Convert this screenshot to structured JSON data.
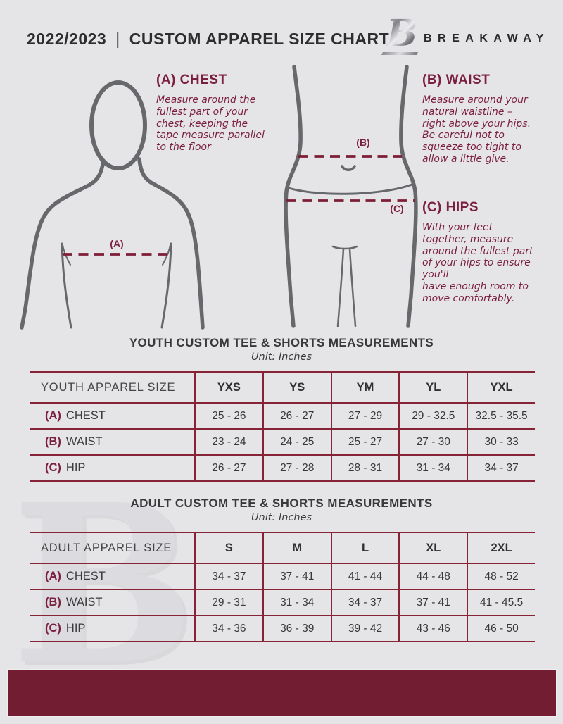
{
  "colors": {
    "background": "#e5e4e6",
    "maroon_text": "#7b1f3e",
    "table_line": "#862336",
    "footer_bar": "#731d32",
    "figure_stroke": "#67686b"
  },
  "header": {
    "year": "2022/2023",
    "divider": "|",
    "title": "CUSTOM APPAREL SIZE CHART",
    "brand": "BREAKAWAY",
    "logo_letter": "B"
  },
  "instructions": {
    "chest": {
      "heading": "(A) CHEST",
      "body": "Measure around the\nfullest part of your\nchest, keeping the\ntape measure parallel\nto the floor",
      "marker": "(A)"
    },
    "waist": {
      "heading": "(B) WAIST",
      "body": "Measure around your\nnatural waistline –\nright above your hips.\nBe careful not to\nsqueeze too tight to\nallow a little give.",
      "marker": "(B)"
    },
    "hips": {
      "heading": "(C) HIPS",
      "body": "With your feet\ntogether, measure\naround the fullest part\nof your hips to ensure\nyou'll\nhave enough room to\nmove comfortably.",
      "marker": "(C)"
    }
  },
  "youth_table": {
    "title": "YOUTH CUSTOM TEE & SHORTS MEASUREMENTS",
    "unit": "Unit: Inches",
    "header": [
      "YOUTH APPAREL SIZE",
      "YXS",
      "YS",
      "YM",
      "YL",
      "YXL"
    ],
    "rows": [
      {
        "prefix": "(A)",
        "label": "CHEST",
        "values": [
          "25 - 26",
          "26 - 27",
          "27 - 29",
          "29 - 32.5",
          "32.5 - 35.5"
        ]
      },
      {
        "prefix": "(B)",
        "label": "WAIST",
        "values": [
          "23 - 24",
          "24 - 25",
          "25 - 27",
          "27 - 30",
          "30 - 33"
        ]
      },
      {
        "prefix": "(C)",
        "label": "HIP",
        "values": [
          "26 - 27",
          "27 - 28",
          "28 - 31",
          "31 - 34",
          "34 - 37"
        ]
      }
    ]
  },
  "adult_table": {
    "title": "ADULT CUSTOM TEE & SHORTS MEASUREMENTS",
    "unit": "Unit: Inches",
    "header": [
      "ADULT APPAREL SIZE",
      "S",
      "M",
      "L",
      "XL",
      "2XL"
    ],
    "rows": [
      {
        "prefix": "(A)",
        "label": "CHEST",
        "values": [
          "34 - 37",
          "37 - 41",
          "41 - 44",
          "44 - 48",
          "48 - 52"
        ]
      },
      {
        "prefix": "(B)",
        "label": "WAIST",
        "values": [
          "29 - 31",
          "31 - 34",
          "34 - 37",
          "37 - 41",
          "41 - 45.5"
        ]
      },
      {
        "prefix": "(C)",
        "label": "HIP",
        "values": [
          "34 - 36",
          "36 - 39",
          "39 - 42",
          "43 - 46",
          "46 - 50"
        ]
      }
    ]
  },
  "watermark_letter": "B"
}
